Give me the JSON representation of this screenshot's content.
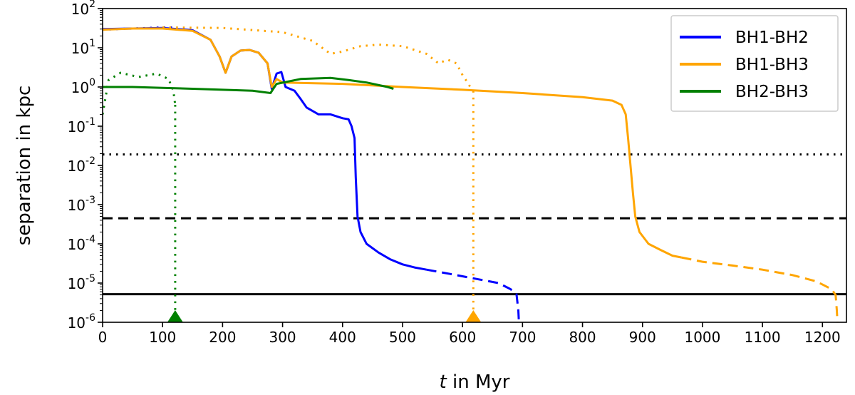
{
  "chart_data": {
    "type": "line",
    "xlabel_italic": "t",
    "xlabel_rest": " in Myr",
    "ylabel": "separation in kpc",
    "xlim": [
      0,
      1240
    ],
    "ylim": [
      1e-06,
      100
    ],
    "yscale": "log",
    "x_ticks": [
      0,
      100,
      200,
      300,
      400,
      500,
      600,
      700,
      800,
      900,
      1000,
      1100,
      1200
    ],
    "y_tick_labels": [
      {
        "base": "10",
        "exp": "-6",
        "value": 1e-06
      },
      {
        "base": "10",
        "exp": "-5",
        "value": 1e-05
      },
      {
        "base": "10",
        "exp": "-4",
        "value": 0.0001
      },
      {
        "base": "10",
        "exp": "-3",
        "value": 0.001
      },
      {
        "base": "10",
        "exp": "-2",
        "value": 0.01
      },
      {
        "base": "10",
        "exp": "-1",
        "value": 0.1
      },
      {
        "base": "10",
        "exp": "0",
        "value": 1
      },
      {
        "base": "10",
        "exp": "1",
        "value": 10
      },
      {
        "base": "10",
        "exp": "2",
        "value": 100
      }
    ],
    "legend_position": "top-right",
    "series": [
      {
        "name": "BH1-BH2",
        "color": "#0000ff",
        "solid": [
          [
            0,
            30
          ],
          [
            50,
            31
          ],
          [
            100,
            32
          ],
          [
            150,
            28
          ],
          [
            180,
            16
          ],
          [
            195,
            6
          ],
          [
            205,
            2.3
          ],
          [
            215,
            6
          ],
          [
            230,
            8.5
          ],
          [
            245,
            8.8
          ],
          [
            260,
            7.5
          ],
          [
            275,
            4
          ],
          [
            282,
            0.9
          ],
          [
            290,
            2.2
          ],
          [
            298,
            2.4
          ],
          [
            305,
            1.0
          ],
          [
            320,
            0.8
          ],
          [
            330,
            0.5
          ],
          [
            340,
            0.3
          ],
          [
            360,
            0.2
          ],
          [
            380,
            0.2
          ],
          [
            400,
            0.16
          ],
          [
            410,
            0.15
          ],
          [
            415,
            0.1
          ],
          [
            420,
            0.05
          ],
          [
            422,
            0.005
          ],
          [
            425,
            0.0005
          ],
          [
            430,
            0.0002
          ],
          [
            440,
            0.0001
          ],
          [
            460,
            6e-05
          ],
          [
            480,
            4e-05
          ],
          [
            500,
            3e-05
          ],
          [
            520,
            2.5e-05
          ],
          [
            540,
            2.2e-05
          ]
        ],
        "dashed": [
          [
            540,
            2.2e-05
          ],
          [
            580,
            1.7e-05
          ],
          [
            620,
            1.3e-05
          ],
          [
            660,
            1e-05
          ],
          [
            680,
            7e-06
          ],
          [
            690,
            5.2e-06
          ],
          [
            693,
            2e-06
          ],
          [
            694,
            1e-06
          ]
        ],
        "dotted": [
          [
            0,
            29
          ],
          [
            50,
            31
          ],
          [
            100,
            33
          ],
          [
            120,
            33
          ]
        ]
      },
      {
        "name": "BH1-BH3",
        "color": "#ffa500",
        "solid": [
          [
            0,
            29
          ],
          [
            50,
            31
          ],
          [
            100,
            31
          ],
          [
            150,
            27
          ],
          [
            180,
            16
          ],
          [
            195,
            6
          ],
          [
            205,
            2.3
          ],
          [
            215,
            6
          ],
          [
            230,
            8.5
          ],
          [
            245,
            8.8
          ],
          [
            260,
            7.5
          ],
          [
            275,
            4
          ],
          [
            282,
            1.0
          ],
          [
            290,
            1.6
          ],
          [
            300,
            1.3
          ],
          [
            400,
            1.2
          ],
          [
            500,
            1.0
          ],
          [
            600,
            0.85
          ],
          [
            700,
            0.7
          ],
          [
            800,
            0.55
          ],
          [
            850,
            0.45
          ],
          [
            865,
            0.35
          ],
          [
            872,
            0.2
          ],
          [
            876,
            0.05
          ],
          [
            880,
            0.01
          ],
          [
            884,
            0.002
          ],
          [
            888,
            0.0005
          ],
          [
            895,
            0.0002
          ],
          [
            910,
            0.0001
          ],
          [
            930,
            7e-05
          ],
          [
            950,
            5e-05
          ],
          [
            965,
            4.5e-05
          ]
        ],
        "dashed": [
          [
            965,
            4.5e-05
          ],
          [
            1000,
            3.5e-05
          ],
          [
            1050,
            2.8e-05
          ],
          [
            1100,
            2.2e-05
          ],
          [
            1150,
            1.6e-05
          ],
          [
            1190,
            1.1e-05
          ],
          [
            1215,
            7e-06
          ],
          [
            1222,
            5e-06
          ],
          [
            1224,
            2e-06
          ],
          [
            1225,
            1e-06
          ]
        ],
        "dotted": [
          [
            100,
            33
          ],
          [
            200,
            32
          ],
          [
            300,
            25
          ],
          [
            350,
            15
          ],
          [
            380,
            7
          ],
          [
            400,
            8
          ],
          [
            430,
            11
          ],
          [
            460,
            12
          ],
          [
            500,
            11
          ],
          [
            540,
            7
          ],
          [
            560,
            4
          ],
          [
            575,
            5
          ],
          [
            590,
            4
          ],
          [
            600,
            2
          ],
          [
            610,
            1.2
          ],
          [
            616,
            0.8
          ]
        ],
        "drop_x": 618
      },
      {
        "name": "BH2-BH3",
        "color": "#008000",
        "solid": [
          [
            0,
            1.0
          ],
          [
            50,
            1.0
          ],
          [
            100,
            0.95
          ],
          [
            150,
            0.9
          ],
          [
            200,
            0.85
          ],
          [
            250,
            0.8
          ],
          [
            280,
            0.7
          ],
          [
            290,
            1.2
          ],
          [
            330,
            1.6
          ],
          [
            380,
            1.7
          ],
          [
            410,
            1.5
          ],
          [
            440,
            1.3
          ],
          [
            475,
            1.0
          ],
          [
            485,
            0.9
          ]
        ],
        "dotted": [
          [
            0,
            0.2
          ],
          [
            10,
            1.5
          ],
          [
            30,
            2.3
          ],
          [
            60,
            1.8
          ],
          [
            90,
            2.2
          ],
          [
            110,
            1.6
          ],
          [
            118,
            0.8
          ],
          [
            121,
            0.35
          ]
        ],
        "drop_x": 121
      }
    ],
    "reference_lines": [
      {
        "style": "dotted",
        "y": 0.019
      },
      {
        "style": "dashed",
        "y": 0.00045
      },
      {
        "style": "solid",
        "y": 5.2e-06
      }
    ],
    "markers": [
      {
        "color": "#008000",
        "x": 121
      },
      {
        "color": "#ffa500",
        "x": 618
      }
    ]
  }
}
